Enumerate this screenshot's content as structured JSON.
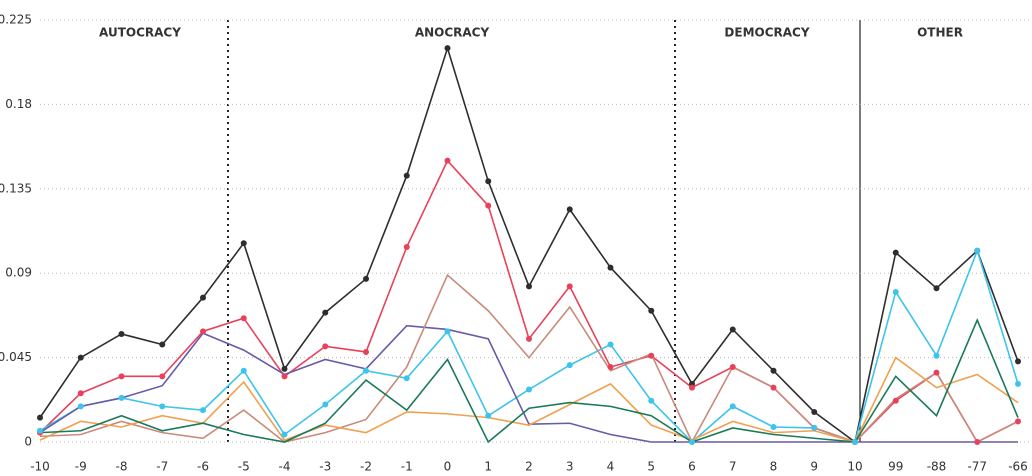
{
  "chart_data": {
    "type": "line",
    "categories": [
      "-10",
      "-9",
      "-8",
      "-7",
      "-6",
      "-5",
      "-4",
      "-3",
      "-2",
      "-1",
      "0",
      "1",
      "2",
      "3",
      "4",
      "5",
      "6",
      "7",
      "8",
      "9",
      "10",
      "99",
      "-88",
      "-77",
      "-66"
    ],
    "annotations": [
      "AUTOCRACY",
      "ANOCRACY",
      "DEMOCRACY",
      "OTHER"
    ],
    "ylim": [
      0,
      0.225
    ],
    "yticks": [
      0,
      0.045,
      0.09,
      0.135,
      0.18,
      0.225
    ],
    "grid": true,
    "series": [
      {
        "color": "#2e2e2e",
        "markers": true,
        "values": [
          0.013,
          0.045,
          0.0576,
          0.052,
          0.077,
          0.106,
          0.039,
          0.069,
          0.087,
          0.142,
          0.21,
          0.139,
          0.083,
          0.124,
          0.093,
          0.07,
          0.031,
          0.06,
          0.038,
          0.016,
          0,
          0.101,
          0.082,
          0.102,
          0.043
        ]
      },
      {
        "color": "#e8425a",
        "markers": true,
        "values": [
          0.005,
          0.026,
          0.035,
          0.035,
          0.059,
          0.066,
          0.035,
          0.051,
          0.048,
          0.104,
          0.15,
          0.126,
          0.055,
          0.083,
          0.04,
          0.046,
          0.029,
          0.04,
          0.029,
          0.0075,
          0,
          0.022,
          0.037,
          0,
          0.011
        ]
      },
      {
        "color": "#3cc4ea",
        "markers": true,
        "values": [
          0.006,
          0.019,
          0.0235,
          0.019,
          0.017,
          0.038,
          0.004,
          0.02,
          0.038,
          0.034,
          0.059,
          0.014,
          0.028,
          0.041,
          0.052,
          0.022,
          0,
          0.019,
          0.008,
          0.0075,
          0,
          0.08,
          0.046,
          0.102,
          0.031
        ]
      },
      {
        "color": "#6a5aa8",
        "markers": false,
        "values": [
          0.005,
          0.019,
          0.0235,
          0.03,
          0.058,
          0.049,
          0.036,
          0.044,
          0.039,
          0.062,
          0.06,
          0.055,
          0.0095,
          0.01,
          0.004,
          0,
          0,
          0,
          0,
          0,
          0,
          0,
          0,
          0,
          0
        ]
      },
      {
        "color": "#c98a7a",
        "markers": false,
        "values": [
          0.003,
          0.004,
          0.011,
          0.005,
          0.002,
          0.017,
          0,
          0.005,
          0.012,
          0.04,
          0.089,
          0.07,
          0.045,
          0.072,
          0.038,
          0.047,
          0,
          0.04,
          0.029,
          0.0075,
          0,
          0.023,
          0.037,
          0,
          0.011
        ]
      },
      {
        "color": "#f0a050",
        "markers": false,
        "values": [
          0.001,
          0.011,
          0.008,
          0.014,
          0.01,
          0.032,
          0.001,
          0.009,
          0.005,
          0.016,
          0.015,
          0.013,
          0.009,
          0.02,
          0.031,
          0.009,
          0.001,
          0.011,
          0.005,
          0.006,
          0,
          0.045,
          0.029,
          0.036,
          0.021
        ]
      },
      {
        "color": "#1a7a5a",
        "markers": false,
        "values": [
          0.005,
          0.006,
          0.014,
          0.006,
          0.01,
          0.004,
          0,
          0.01,
          0.033,
          0.017,
          0.044,
          0,
          0.018,
          0.021,
          0.019,
          0.014,
          0,
          0.0075,
          0.004,
          0.002,
          0,
          0.035,
          0.014,
          0.065,
          0.013
        ]
      }
    ]
  }
}
